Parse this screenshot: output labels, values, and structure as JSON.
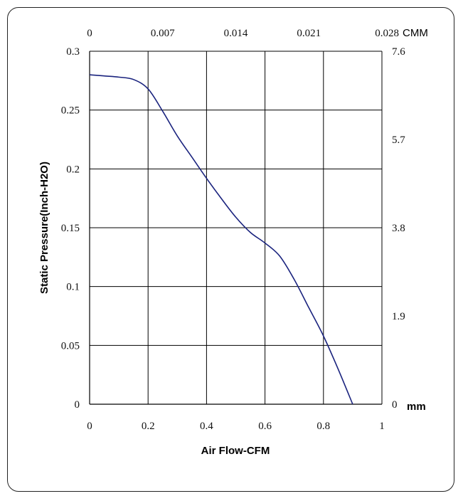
{
  "chart_data": {
    "type": "line",
    "xlabel": "Air Flow-CFM",
    "ylabel": "Static Pressure(Inch-H2O)",
    "xlim": [
      0,
      1
    ],
    "ylim": [
      0,
      0.3
    ],
    "x_ticks": [
      "0",
      "0.2",
      "0.4",
      "0.6",
      "0.8",
      "1"
    ],
    "y_ticks": [
      "0",
      "0.05",
      "0.1",
      "0.15",
      "0.2",
      "0.25",
      "0.3"
    ],
    "top_axis": {
      "unit": "CMM",
      "ticks": [
        "0",
        "0.007",
        "0.014",
        "0.021",
        "0.028"
      ]
    },
    "right_axis": {
      "unit": "mm",
      "ticks": [
        "0",
        "1.9",
        "3.8",
        "5.7",
        "7.6"
      ]
    },
    "grid": true,
    "line_color": "#1a237e",
    "series": [
      {
        "x": [
          0,
          0.05,
          0.1,
          0.15,
          0.2,
          0.25,
          0.3,
          0.35,
          0.4,
          0.45,
          0.5,
          0.55,
          0.6,
          0.65,
          0.7,
          0.75,
          0.8,
          0.85,
          0.9
        ],
        "y": [
          0.28,
          0.279,
          0.278,
          0.276,
          0.268,
          0.249,
          0.228,
          0.21,
          0.192,
          0.175,
          0.159,
          0.146,
          0.137,
          0.126,
          0.106,
          0.082,
          0.058,
          0.03,
          0
        ]
      }
    ]
  }
}
